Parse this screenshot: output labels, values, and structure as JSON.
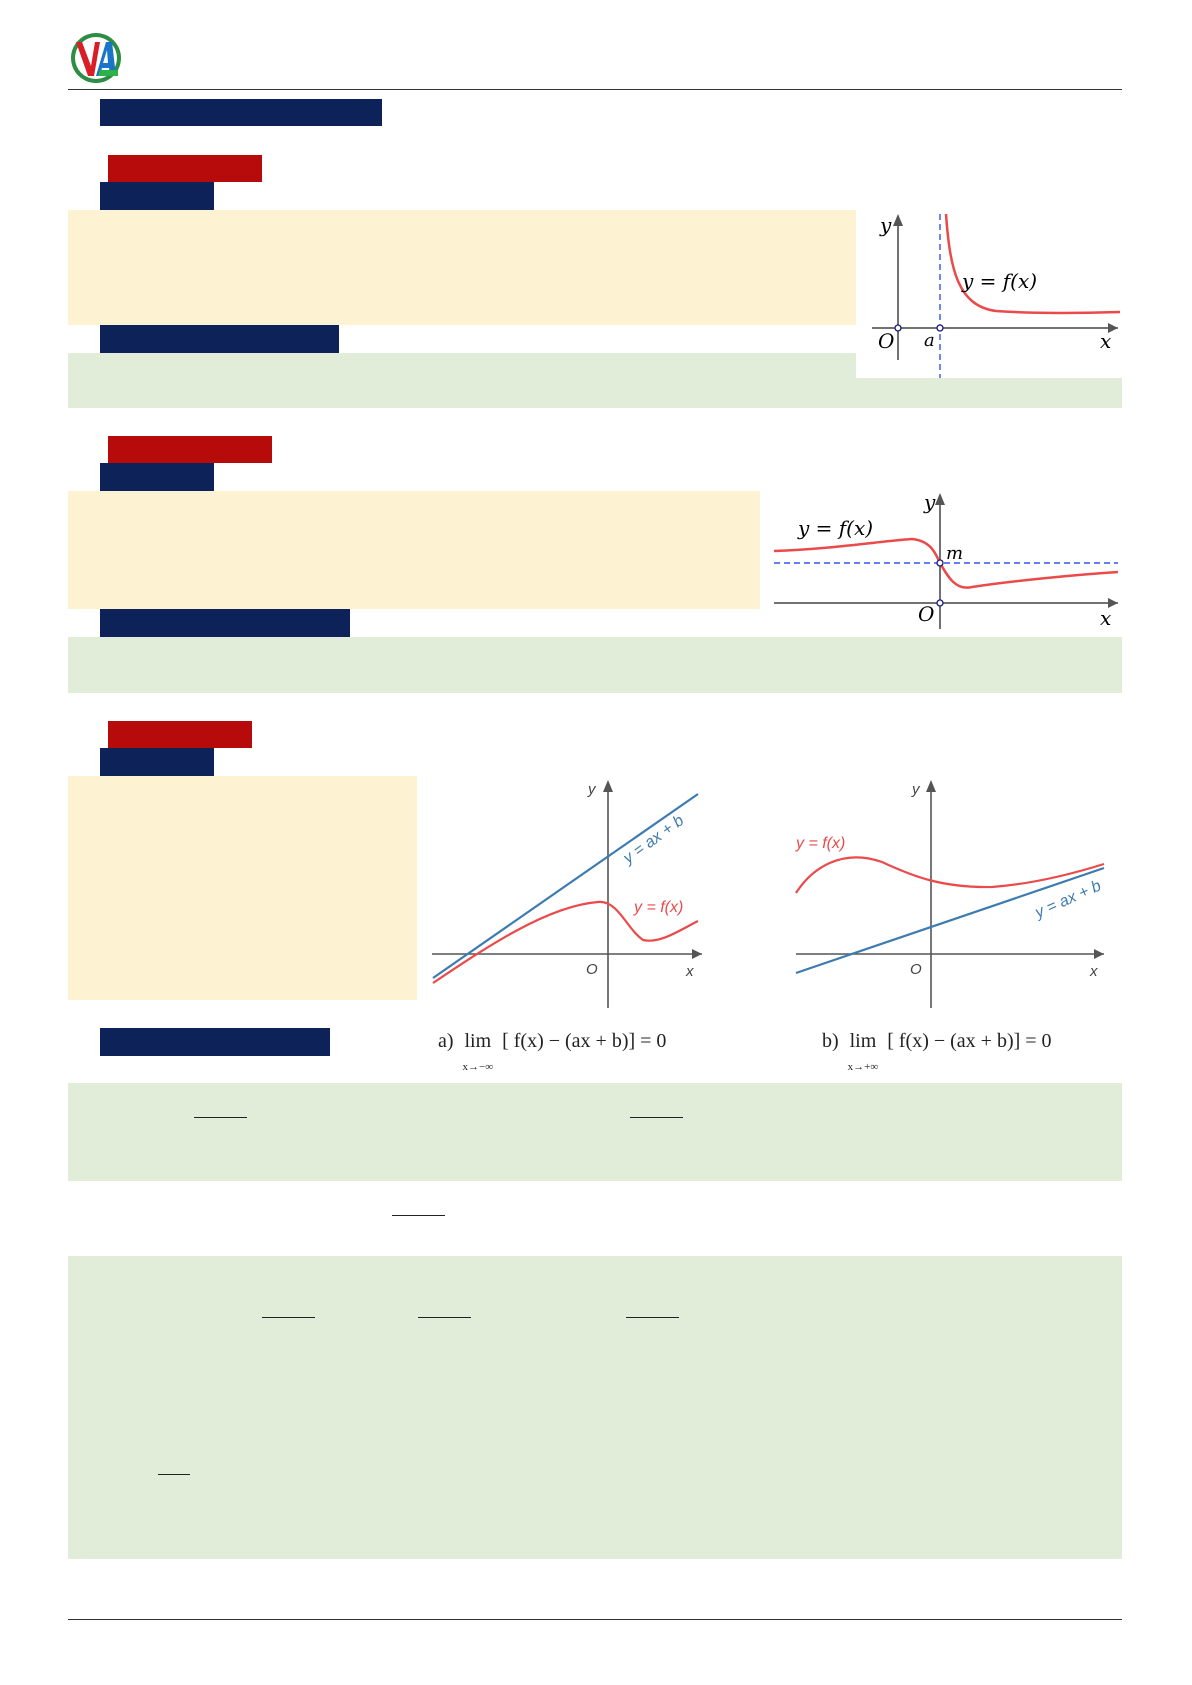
{
  "logo": {
    "glyphs": "VA"
  },
  "fig1": {
    "y": "y",
    "x": "x",
    "o": "O",
    "a": "a",
    "curve": "y = f(x)"
  },
  "fig2": {
    "y": "y",
    "x": "x",
    "o": "O",
    "m": "m",
    "curve": "y = f(x)"
  },
  "fig3a": {
    "y": "y",
    "x": "x",
    "o": "O",
    "line": "y = ax + b",
    "curve": "y = f(x)"
  },
  "fig3b": {
    "y": "y",
    "x": "x",
    "o": "O",
    "line": "y = ax + b",
    "curve": "y = f(x)"
  },
  "captions": {
    "a_label": "a)",
    "a_lim": "lim",
    "a_sub": "x→−∞",
    "a_expr": "[ f(x) − (ax + b)] = 0",
    "b_label": "b)",
    "b_lim": "lim",
    "b_sub": "x→+∞",
    "b_expr": "[ f(x) − (ax + b)] = 0"
  },
  "colors": {
    "navy": "#0d2259",
    "red": "#b70a0a",
    "cream": "#fdf3d3",
    "green": "#e1edd8",
    "curve": "#ea4a4a",
    "asymptote": "#3355ee",
    "oblique": "#3d7bb0"
  }
}
